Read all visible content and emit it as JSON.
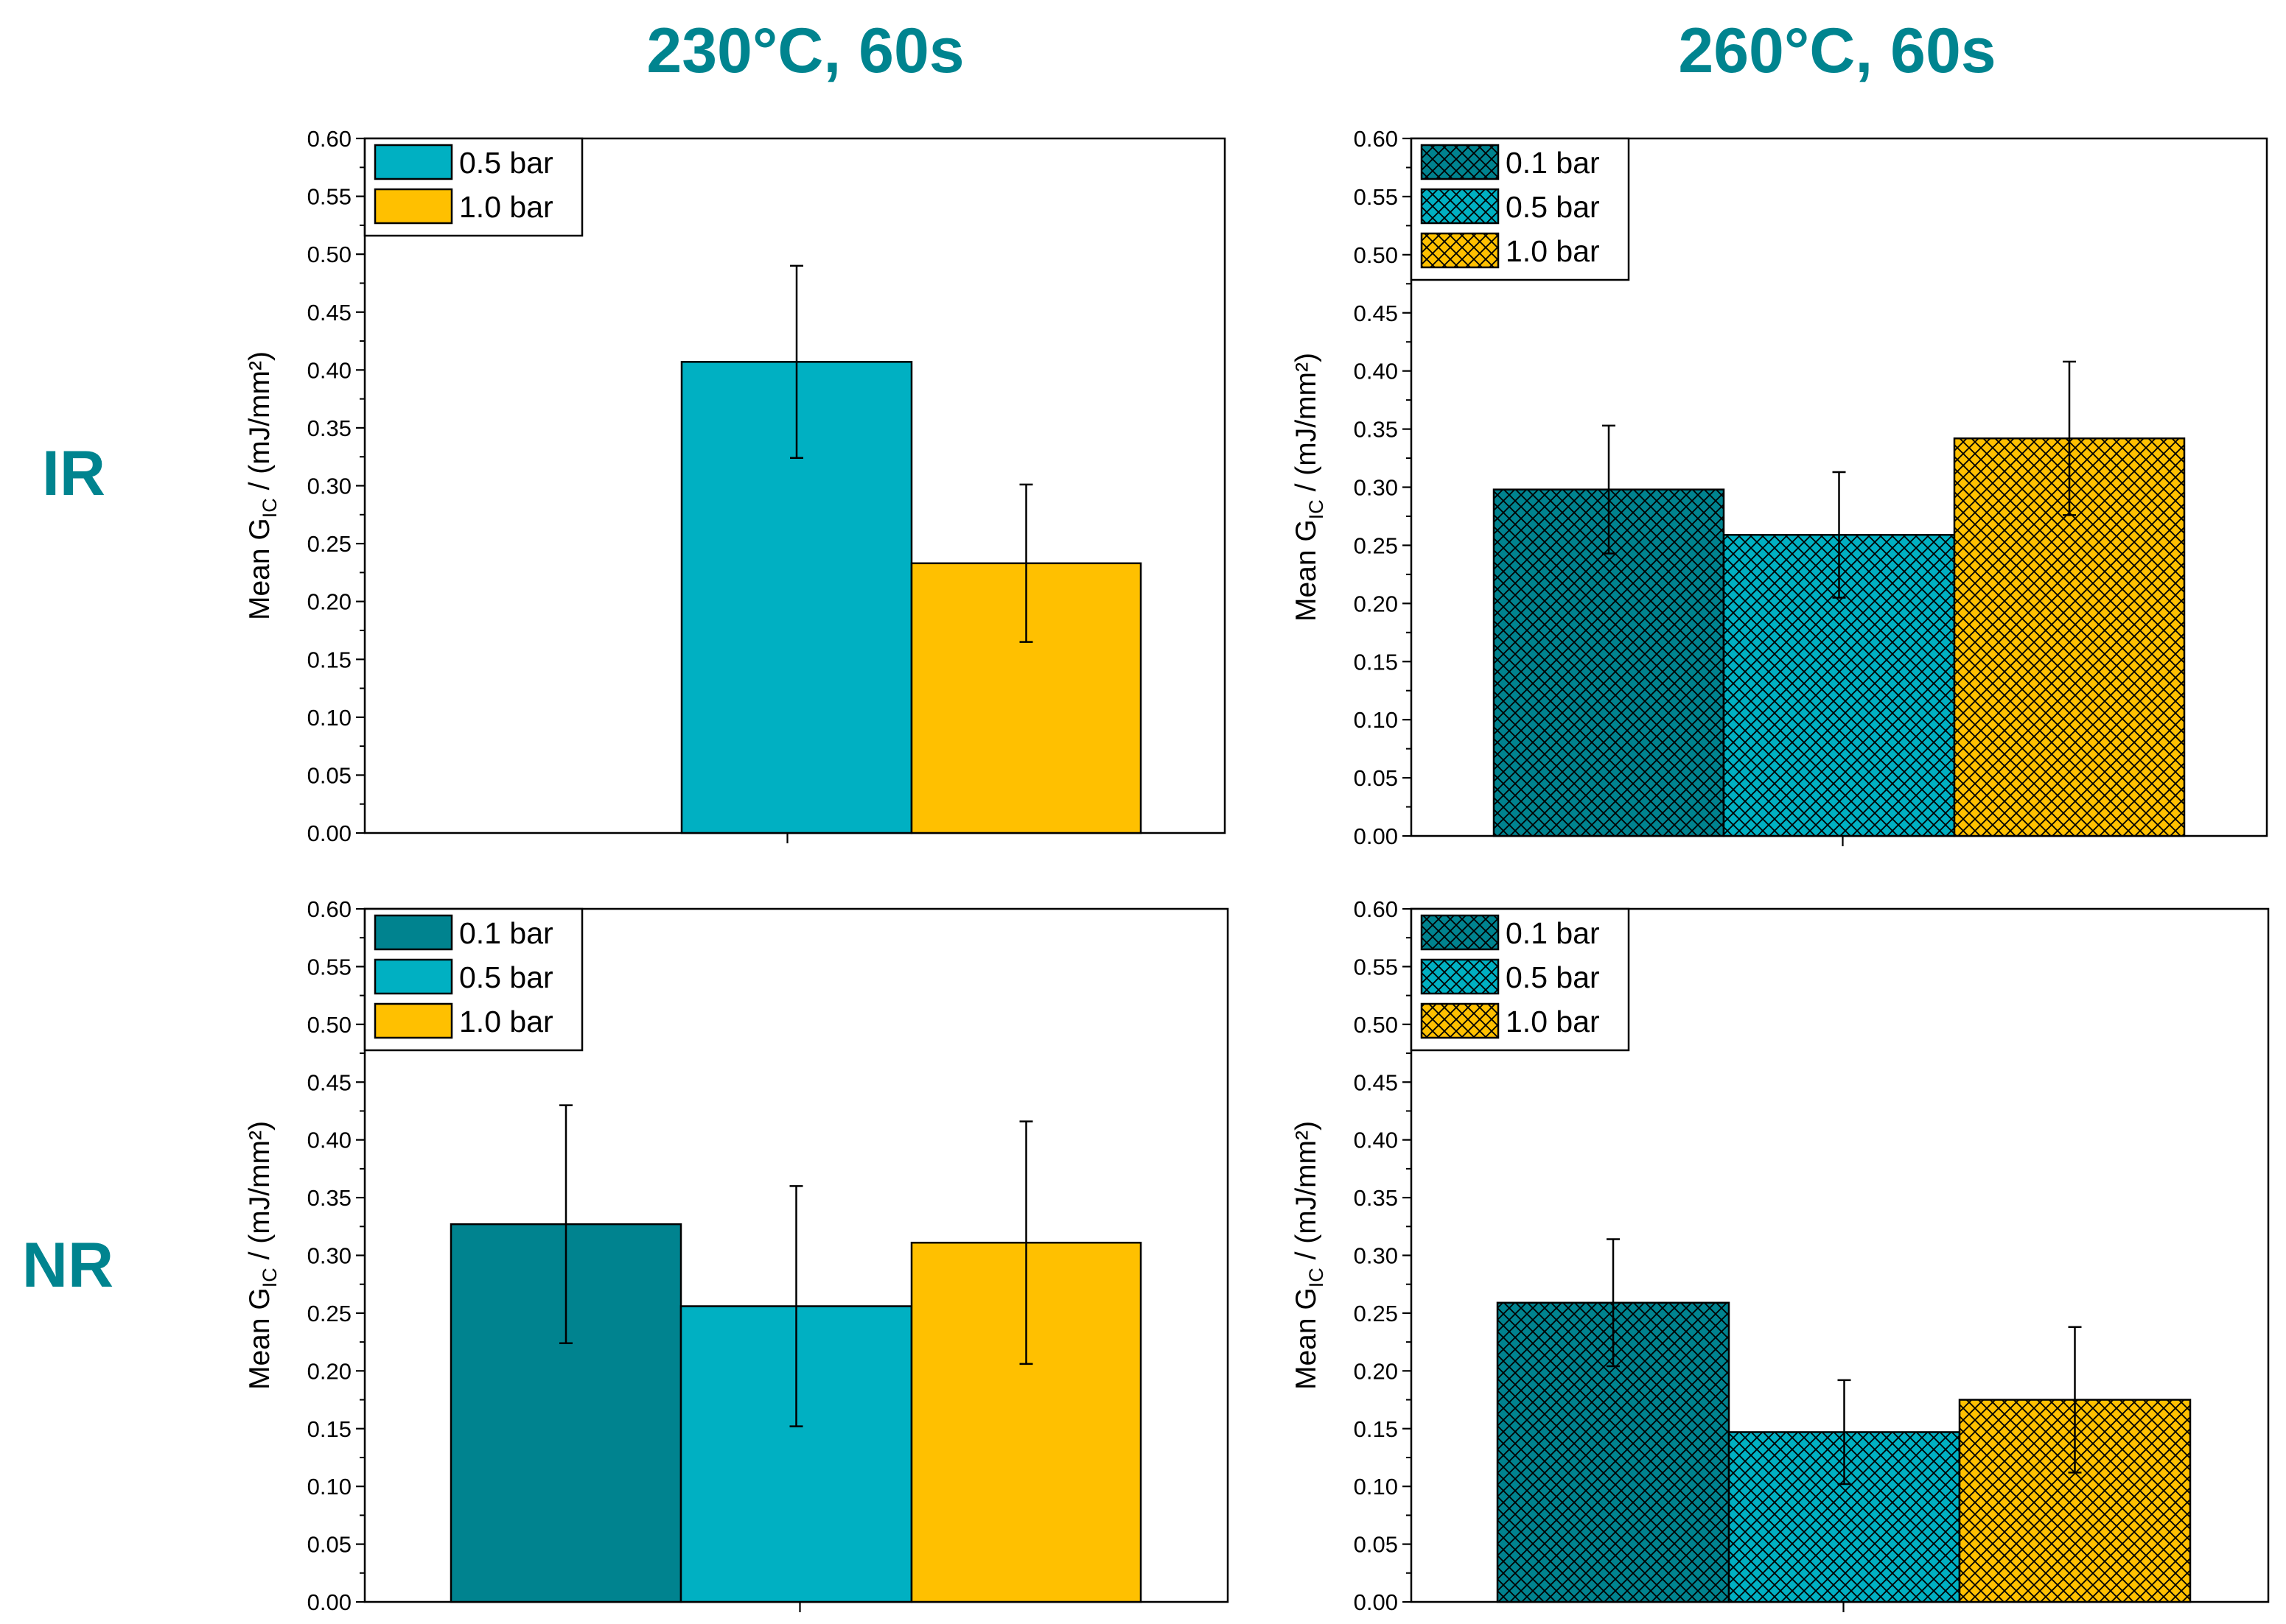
{
  "headings": {
    "col_left": "230°C, 60s",
    "col_right": "260°C, 60s",
    "row_top": "IR",
    "row_bottom": "NR"
  },
  "axis": {
    "ylabel_main": "Mean G",
    "ylabel_sub": "IC",
    "ylabel_unit": " / (mJ/mm²)"
  },
  "series_styles": {
    "0.1 bar": {
      "color": "#00838F",
      "pattern_color": "#00838F"
    },
    "0.5 bar": {
      "color": "#00B0C2",
      "pattern_color": "#00B0C2"
    },
    "1.0 bar": {
      "color": "#FFC000",
      "pattern_color": "#FFC000"
    }
  },
  "chart_data": [
    {
      "type": "bar",
      "panel": "IR, 230°C, 60s",
      "title": "",
      "xlabel": "",
      "ylabel": "Mean G_IC / (mJ/mm²)",
      "ylim": [
        0,
        0.6
      ],
      "yticks": [
        "0.00",
        "0.05",
        "0.10",
        "0.15",
        "0.20",
        "0.25",
        "0.30",
        "0.35",
        "0.40",
        "0.45",
        "0.50",
        "0.55",
        "0.60"
      ],
      "hatched": false,
      "legend_position": "top-left",
      "group_slots": 3,
      "series": [
        {
          "name": "0.5 bar",
          "slot": 1,
          "value": 0.407,
          "error": 0.083
        },
        {
          "name": "1.0 bar",
          "slot": 2,
          "value": 0.233,
          "error": 0.068
        }
      ]
    },
    {
      "type": "bar",
      "panel": "IR, 260°C, 60s",
      "title": "",
      "xlabel": "",
      "ylabel": "Mean G_IC / (mJ/mm²)",
      "ylim": [
        0,
        0.6
      ],
      "yticks": [
        "0.00",
        "0.05",
        "0.10",
        "0.15",
        "0.20",
        "0.25",
        "0.30",
        "0.35",
        "0.40",
        "0.45",
        "0.50",
        "0.55",
        "0.60"
      ],
      "hatched": true,
      "legend_position": "top-left",
      "group_slots": 3,
      "series": [
        {
          "name": "0.1 bar",
          "slot": 0,
          "value": 0.298,
          "error": 0.055
        },
        {
          "name": "0.5 bar",
          "slot": 1,
          "value": 0.259,
          "error": 0.054
        },
        {
          "name": "1.0 bar",
          "slot": 2,
          "value": 0.342,
          "error": 0.066
        }
      ]
    },
    {
      "type": "bar",
      "panel": "NR, 230°C, 60s",
      "title": "",
      "xlabel": "",
      "ylabel": "Mean G_IC / (mJ/mm²)",
      "ylim": [
        0,
        0.6
      ],
      "yticks": [
        "0.00",
        "0.05",
        "0.10",
        "0.15",
        "0.20",
        "0.25",
        "0.30",
        "0.35",
        "0.40",
        "0.45",
        "0.50",
        "0.55",
        "0.60"
      ],
      "hatched": false,
      "legend_position": "top-left",
      "group_slots": 3,
      "series": [
        {
          "name": "0.1 bar",
          "slot": 0,
          "value": 0.327,
          "error": 0.103
        },
        {
          "name": "0.5 bar",
          "slot": 1,
          "value": 0.256,
          "error": 0.104
        },
        {
          "name": "1.0 bar",
          "slot": 2,
          "value": 0.311,
          "error": 0.105
        }
      ]
    },
    {
      "type": "bar",
      "panel": "NR, 260°C, 60s",
      "title": "",
      "xlabel": "",
      "ylabel": "Mean G_IC / (mJ/mm²)",
      "ylim": [
        0,
        0.6
      ],
      "yticks": [
        "0.00",
        "0.05",
        "0.10",
        "0.15",
        "0.20",
        "0.25",
        "0.30",
        "0.35",
        "0.40",
        "0.45",
        "0.50",
        "0.55",
        "0.60"
      ],
      "hatched": true,
      "legend_position": "top-left",
      "group_slots": 3,
      "series": [
        {
          "name": "0.1 bar",
          "slot": 0,
          "value": 0.259,
          "error": 0.055
        },
        {
          "name": "0.5 bar",
          "slot": 1,
          "value": 0.147,
          "error": 0.045
        },
        {
          "name": "1.0 bar",
          "slot": 2,
          "value": 0.175,
          "error": 0.063
        }
      ]
    }
  ]
}
